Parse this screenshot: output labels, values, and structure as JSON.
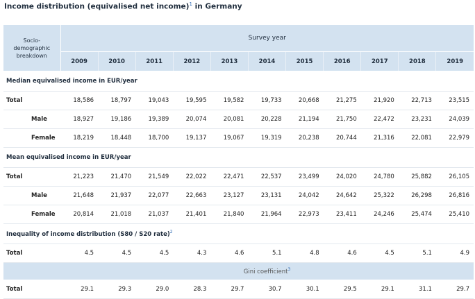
{
  "title": "Income distribution (equivalised net income)",
  "title_footnote": "1",
  "title_suffix": " in Germany",
  "header": {
    "corner_line1": "Socio-",
    "corner_line2": "demographic",
    "corner_line3": "breakdown",
    "survey_year": "Survey year",
    "years": [
      "2009",
      "2010",
      "2011",
      "2012",
      "2013",
      "2014",
      "2015",
      "2016",
      "2017",
      "2018",
      "2019"
    ]
  },
  "median": {
    "heading": "Median equivalised income in EUR/year",
    "rows": [
      {
        "label": "Total",
        "values": [
          "18,586",
          "18,797",
          "19,043",
          "19,595",
          "19,582",
          "19,733",
          "20,668",
          "21,275",
          "21,920",
          "22,713",
          "23,515"
        ]
      },
      {
        "label": "Male",
        "values": [
          "18,927",
          "19,186",
          "19,389",
          "20,074",
          "20,081",
          "20,228",
          "21,194",
          "21,750",
          "22,472",
          "23,231",
          "24,039"
        ]
      },
      {
        "label": "Female",
        "values": [
          "18,219",
          "18,448",
          "18,700",
          "19,137",
          "19,067",
          "19,319",
          "20,238",
          "20,744",
          "21,316",
          "22,081",
          "22,979"
        ]
      }
    ]
  },
  "mean": {
    "heading": "Mean equivalised income in EUR/year",
    "rows": [
      {
        "label": "Total",
        "values": [
          "21,223",
          "21,470",
          "21,549",
          "22,022",
          "22,471",
          "22,537",
          "23,499",
          "24,020",
          "24,780",
          "25,882",
          "26,105"
        ]
      },
      {
        "label": "Male",
        "values": [
          "21,648",
          "21,937",
          "22,077",
          "22,663",
          "23,127",
          "23,131",
          "24,042",
          "24,642",
          "25,322",
          "26,298",
          "26,816"
        ]
      },
      {
        "label": "Female",
        "values": [
          "20,814",
          "21,018",
          "21,037",
          "21,401",
          "21,840",
          "21,964",
          "22,973",
          "23,411",
          "24,246",
          "25,474",
          "25,410"
        ]
      }
    ]
  },
  "inequality": {
    "heading": "Inequality of income distribution (S80 / S20 rate)",
    "footnote": "2",
    "rows": [
      {
        "label": "Total",
        "values": [
          "4.5",
          "4.5",
          "4.5",
          "4.3",
          "4.6",
          "5.1",
          "4.8",
          "4.6",
          "4.5",
          "5.1",
          "4.9"
        ]
      }
    ]
  },
  "gini": {
    "heading": "Gini coefficient",
    "footnote": "3",
    "rows": [
      {
        "label": "Total",
        "values": [
          "29.1",
          "29.3",
          "29.0",
          "28.3",
          "29.7",
          "30.7",
          "30.1",
          "29.5",
          "29.1",
          "31.1",
          "29.7"
        ]
      }
    ]
  }
}
